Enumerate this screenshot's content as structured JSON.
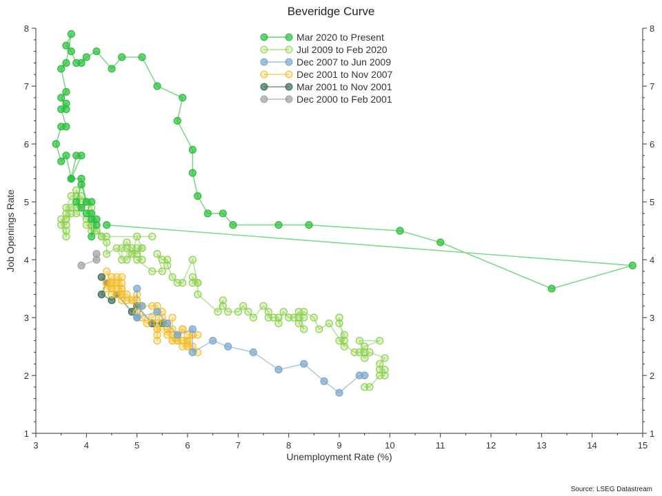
{
  "chart_data": {
    "type": "scatter",
    "title": "Beveridge Curve",
    "xlabel": "Unemployment Rate (%)",
    "ylabel": "Job Openings Rate",
    "source": "Source: LSEG Datastream",
    "xlim": [
      3,
      15
    ],
    "ylim": [
      1,
      8
    ],
    "x_ticks": [
      "3",
      "4",
      "5",
      "6",
      "7",
      "8",
      "9",
      "10",
      "11",
      "12",
      "13",
      "14",
      "15"
    ],
    "y_ticks": [
      "1",
      "2",
      "3",
      "4",
      "5",
      "6",
      "7",
      "8"
    ],
    "legend_position": "top-center",
    "grid": false,
    "series": [
      {
        "name": "Mar 2020 to Present",
        "color": "#2bbd3c",
        "filled": true,
        "points": [
          [
            4.4,
            4.6
          ],
          [
            14.8,
            3.9
          ],
          [
            13.2,
            3.5
          ],
          [
            11.0,
            4.3
          ],
          [
            10.2,
            4.5
          ],
          [
            8.4,
            4.6
          ],
          [
            7.8,
            4.6
          ],
          [
            6.9,
            4.6
          ],
          [
            6.7,
            4.8
          ],
          [
            6.4,
            4.8
          ],
          [
            6.2,
            5.1
          ],
          [
            6.1,
            5.5
          ],
          [
            6.1,
            5.9
          ],
          [
            5.8,
            6.4
          ],
          [
            5.9,
            6.8
          ],
          [
            5.4,
            7.0
          ],
          [
            5.1,
            7.5
          ],
          [
            4.7,
            7.5
          ],
          [
            4.5,
            7.3
          ],
          [
            4.2,
            7.6
          ],
          [
            4.0,
            7.5
          ],
          [
            3.9,
            7.4
          ],
          [
            3.8,
            7.4
          ],
          [
            3.7,
            7.6
          ],
          [
            3.6,
            7.7
          ],
          [
            3.7,
            7.9
          ],
          [
            3.6,
            7.4
          ],
          [
            3.5,
            7.3
          ],
          [
            3.6,
            6.9
          ],
          [
            3.5,
            6.8
          ],
          [
            3.6,
            6.6
          ],
          [
            3.6,
            6.7
          ],
          [
            3.5,
            6.6
          ],
          [
            3.6,
            6.3
          ],
          [
            3.5,
            6.3
          ],
          [
            3.4,
            6.0
          ],
          [
            3.5,
            5.7
          ],
          [
            3.6,
            5.8
          ],
          [
            3.7,
            5.4
          ],
          [
            3.8,
            5.8
          ],
          [
            3.9,
            5.8
          ],
          [
            3.7,
            5.4
          ],
          [
            3.9,
            5.4
          ],
          [
            4.0,
            5.0
          ],
          [
            3.9,
            5.3
          ],
          [
            3.8,
            5.0
          ],
          [
            3.9,
            4.9
          ],
          [
            4.1,
            5.0
          ],
          [
            4.0,
            4.8
          ],
          [
            4.1,
            4.8
          ],
          [
            4.1,
            4.4
          ],
          [
            4.2,
            4.7
          ],
          [
            4.1,
            4.7
          ],
          [
            4.2,
            4.6
          ]
        ]
      },
      {
        "name": "Jul 2009 to Feb 2020",
        "color": "#8ecf4e",
        "filled": false,
        "points": [
          [
            9.5,
            1.8
          ],
          [
            9.6,
            1.8
          ],
          [
            9.8,
            2.0
          ],
          [
            9.9,
            2.0
          ],
          [
            9.9,
            2.1
          ],
          [
            9.8,
            2.1
          ],
          [
            9.8,
            2.2
          ],
          [
            9.9,
            2.3
          ],
          [
            9.6,
            2.4
          ],
          [
            9.5,
            2.3
          ],
          [
            9.4,
            2.4
          ],
          [
            9.5,
            2.5
          ],
          [
            9.8,
            2.6
          ],
          [
            9.4,
            2.6
          ],
          [
            9.5,
            2.4
          ],
          [
            9.3,
            2.4
          ],
          [
            9.0,
            2.6
          ],
          [
            9.1,
            2.6
          ],
          [
            9.1,
            2.7
          ],
          [
            9.0,
            2.9
          ],
          [
            9.0,
            3.0
          ],
          [
            9.1,
            2.5
          ],
          [
            8.8,
            2.9
          ],
          [
            8.6,
            2.8
          ],
          [
            8.5,
            3.0
          ],
          [
            8.3,
            3.1
          ],
          [
            8.2,
            3.0
          ],
          [
            8.3,
            3.0
          ],
          [
            8.2,
            2.9
          ],
          [
            8.3,
            2.8
          ],
          [
            8.2,
            3.1
          ],
          [
            8.1,
            3.0
          ],
          [
            8.0,
            3.0
          ],
          [
            7.9,
            3.1
          ],
          [
            7.8,
            2.9
          ],
          [
            7.8,
            3.0
          ],
          [
            7.7,
            3.0
          ],
          [
            7.6,
            3.0
          ],
          [
            7.6,
            3.1
          ],
          [
            7.5,
            3.2
          ],
          [
            7.3,
            3.0
          ],
          [
            7.2,
            3.1
          ],
          [
            7.1,
            3.2
          ],
          [
            7.0,
            3.1
          ],
          [
            6.8,
            3.1
          ],
          [
            6.7,
            3.2
          ],
          [
            6.7,
            3.3
          ],
          [
            6.6,
            3.1
          ],
          [
            6.2,
            3.4
          ],
          [
            6.2,
            3.6
          ],
          [
            6.1,
            3.6
          ],
          [
            6.1,
            3.7
          ],
          [
            6.2,
            3.6
          ],
          [
            6.1,
            4.0
          ],
          [
            5.9,
            3.6
          ],
          [
            5.8,
            3.6
          ],
          [
            5.7,
            3.7
          ],
          [
            5.6,
            3.9
          ],
          [
            5.6,
            4.0
          ],
          [
            5.5,
            4.0
          ],
          [
            5.4,
            4.1
          ],
          [
            5.5,
            3.8
          ],
          [
            5.3,
            3.8
          ],
          [
            5.0,
            4.0
          ],
          [
            5.1,
            4.0
          ],
          [
            5.0,
            4.2
          ],
          [
            5.1,
            4.2
          ],
          [
            4.9,
            4.1
          ],
          [
            4.8,
            4.0
          ],
          [
            4.8,
            4.2
          ],
          [
            4.9,
            4.1
          ],
          [
            5.0,
            4.4
          ],
          [
            5.1,
            4.2
          ],
          [
            5.0,
            4.1
          ],
          [
            4.9,
            4.2
          ],
          [
            4.8,
            4.3
          ],
          [
            4.7,
            4.2
          ],
          [
            4.7,
            4.0
          ],
          [
            4.6,
            4.2
          ],
          [
            4.4,
            4.1
          ],
          [
            4.4,
            4.3
          ],
          [
            4.3,
            4.4
          ],
          [
            4.4,
            4.4
          ],
          [
            4.2,
            4.5
          ],
          [
            4.1,
            4.5
          ],
          [
            4.0,
            4.6
          ],
          [
            4.1,
            4.6
          ],
          [
            4.0,
            4.7
          ],
          [
            3.8,
            4.8
          ],
          [
            3.9,
            4.9
          ],
          [
            3.8,
            5.1
          ],
          [
            3.7,
            5.1
          ],
          [
            3.6,
            4.9
          ],
          [
            3.6,
            4.7
          ],
          [
            3.7,
            4.8
          ],
          [
            3.6,
            4.6
          ],
          [
            3.5,
            4.7
          ],
          [
            3.6,
            4.5
          ],
          [
            3.6,
            4.4
          ],
          [
            3.5,
            4.6
          ],
          [
            3.6,
            4.8
          ],
          [
            3.7,
            4.9
          ],
          [
            3.8,
            5.2
          ],
          [
            3.9,
            5.0
          ],
          [
            4.0,
            5.0
          ],
          [
            3.8,
            4.9
          ],
          [
            3.9,
            5.1
          ],
          [
            4.1,
            4.9
          ],
          [
            4.2,
            4.5
          ],
          [
            4.3,
            4.4
          ],
          [
            5.3,
            4.4
          ]
        ]
      },
      {
        "name": "Dec 2007 to Jun 2009",
        "color": "#7aa6c9",
        "filled": true,
        "points": [
          [
            5.0,
            3.5
          ],
          [
            5.0,
            3.0
          ],
          [
            5.1,
            3.2
          ],
          [
            5.0,
            3.0
          ],
          [
            5.4,
            3.1
          ],
          [
            5.6,
            2.9
          ],
          [
            5.8,
            2.7
          ],
          [
            6.1,
            2.8
          ],
          [
            6.1,
            2.4
          ],
          [
            6.5,
            2.6
          ],
          [
            6.8,
            2.5
          ],
          [
            7.3,
            2.4
          ],
          [
            7.8,
            2.1
          ],
          [
            8.3,
            2.2
          ],
          [
            8.7,
            1.9
          ],
          [
            9.0,
            1.7
          ],
          [
            9.4,
            2.0
          ],
          [
            9.5,
            2.0
          ]
        ]
      },
      {
        "name": "Dec 2001 to Nov 2007",
        "color": "#f2bd2e",
        "filled": false,
        "points": [
          [
            5.7,
            3.0
          ],
          [
            5.7,
            2.8
          ],
          [
            5.8,
            2.7
          ],
          [
            5.9,
            2.8
          ],
          [
            5.8,
            2.6
          ],
          [
            6.0,
            2.6
          ],
          [
            5.9,
            2.5
          ],
          [
            6.0,
            2.5
          ],
          [
            5.8,
            2.6
          ],
          [
            5.7,
            2.6
          ],
          [
            5.9,
            2.8
          ],
          [
            6.0,
            2.7
          ],
          [
            6.1,
            2.7
          ],
          [
            6.0,
            2.5
          ],
          [
            6.2,
            2.4
          ],
          [
            6.1,
            2.5
          ],
          [
            6.0,
            2.6
          ],
          [
            6.0,
            2.6
          ],
          [
            5.8,
            2.7
          ],
          [
            5.7,
            2.6
          ],
          [
            5.7,
            2.7
          ],
          [
            5.6,
            2.8
          ],
          [
            5.6,
            2.7
          ],
          [
            5.6,
            2.8
          ],
          [
            5.4,
            2.8
          ],
          [
            5.4,
            2.7
          ],
          [
            5.4,
            2.6
          ],
          [
            5.4,
            2.9
          ],
          [
            5.4,
            3.1
          ],
          [
            5.5,
            3.1
          ],
          [
            5.3,
            3.0
          ],
          [
            5.2,
            2.9
          ],
          [
            5.1,
            3.0
          ],
          [
            5.0,
            3.0
          ],
          [
            5.0,
            3.1
          ],
          [
            4.9,
            3.3
          ],
          [
            5.0,
            3.3
          ],
          [
            4.8,
            3.4
          ],
          [
            4.7,
            3.4
          ],
          [
            4.7,
            3.3
          ],
          [
            4.7,
            3.6
          ],
          [
            4.6,
            3.7
          ],
          [
            4.5,
            3.6
          ],
          [
            4.5,
            3.5
          ],
          [
            4.4,
            3.5
          ],
          [
            4.5,
            3.7
          ],
          [
            4.4,
            3.6
          ],
          [
            4.6,
            3.5
          ],
          [
            4.7,
            3.5
          ],
          [
            4.6,
            3.6
          ],
          [
            4.7,
            3.5
          ],
          [
            4.4,
            3.6
          ],
          [
            4.5,
            3.5
          ],
          [
            4.4,
            3.8
          ],
          [
            4.5,
            3.6
          ],
          [
            4.6,
            3.6
          ],
          [
            4.7,
            3.7
          ],
          [
            4.6,
            3.4
          ],
          [
            4.5,
            3.4
          ],
          [
            4.7,
            3.4
          ],
          [
            4.8,
            3.3
          ],
          [
            4.9,
            3.3
          ],
          [
            5.0,
            3.4
          ],
          [
            5.1,
            3.2
          ],
          [
            5.3,
            3.2
          ],
          [
            5.4,
            3.2
          ],
          [
            5.5,
            3.0
          ],
          [
            5.6,
            2.9
          ],
          [
            5.4,
            2.8
          ],
          [
            5.8,
            2.6
          ],
          [
            5.9,
            2.6
          ],
          [
            6.2,
            2.7
          ]
        ]
      },
      {
        "name": "Mar 2001 to Nov 2001",
        "color": "#3a6b52",
        "filled": true,
        "points": [
          [
            4.3,
            3.7
          ],
          [
            4.4,
            3.6
          ],
          [
            4.3,
            3.4
          ],
          [
            4.5,
            3.3
          ],
          [
            4.6,
            3.4
          ],
          [
            4.9,
            3.1
          ],
          [
            5.0,
            3.2
          ],
          [
            5.3,
            2.9
          ],
          [
            5.5,
            2.9
          ]
        ]
      },
      {
        "name": "Dec 2000 to Feb 2001",
        "color": "#a0a0a0",
        "filled": true,
        "points": [
          [
            3.9,
            3.9
          ],
          [
            4.2,
            4.0
          ],
          [
            4.2,
            4.1
          ]
        ]
      }
    ]
  }
}
